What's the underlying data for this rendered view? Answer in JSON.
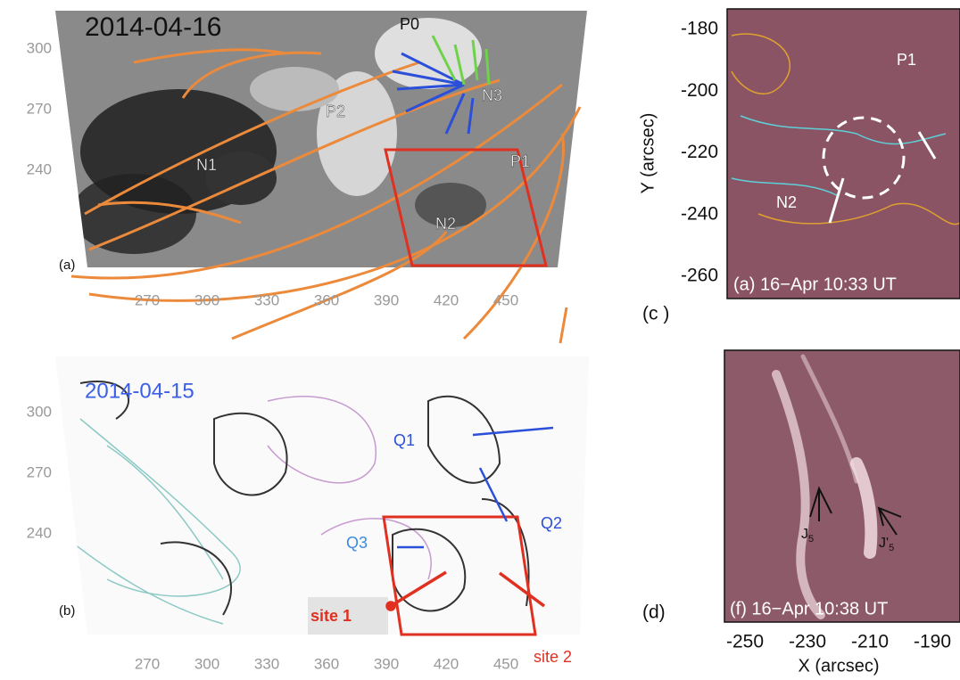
{
  "panel_a": {
    "date": "2014-04-16",
    "tag": "(a)",
    "labels": [
      "P0",
      "N3",
      "P2",
      "P1",
      "N1",
      "N2"
    ],
    "yticks": [
      300,
      270,
      240
    ],
    "xticks": [
      270,
      300,
      330,
      360,
      390,
      420,
      450
    ]
  },
  "panel_b": {
    "date": "2014-04-15",
    "tag": "(b)",
    "labels": [
      "Q1",
      "Q2",
      "Q3"
    ],
    "sites": [
      "site 1",
      "site 2"
    ],
    "yticks": [
      300,
      270,
      240
    ],
    "xticks": [
      270,
      300,
      330,
      360,
      390,
      420,
      450
    ]
  },
  "panel_c": {
    "tag": "(c )",
    "inset_label": "(a) 16−Apr 10:33 UT",
    "labels": [
      "P1",
      "N2"
    ],
    "y_label": "Y (arcsec)",
    "yticks": [
      -180,
      -200,
      -220,
      -240,
      -260
    ]
  },
  "panel_d": {
    "tag": "(d)",
    "inset_label": "(f) 16−Apr 10:38 UT",
    "jets": [
      {
        "name": "J",
        "sub": "5"
      },
      {
        "name": "J'",
        "sub": "5"
      }
    ],
    "x_label": "X (arcsec)",
    "xticks": [
      -250,
      -230,
      -210,
      -190
    ]
  }
}
